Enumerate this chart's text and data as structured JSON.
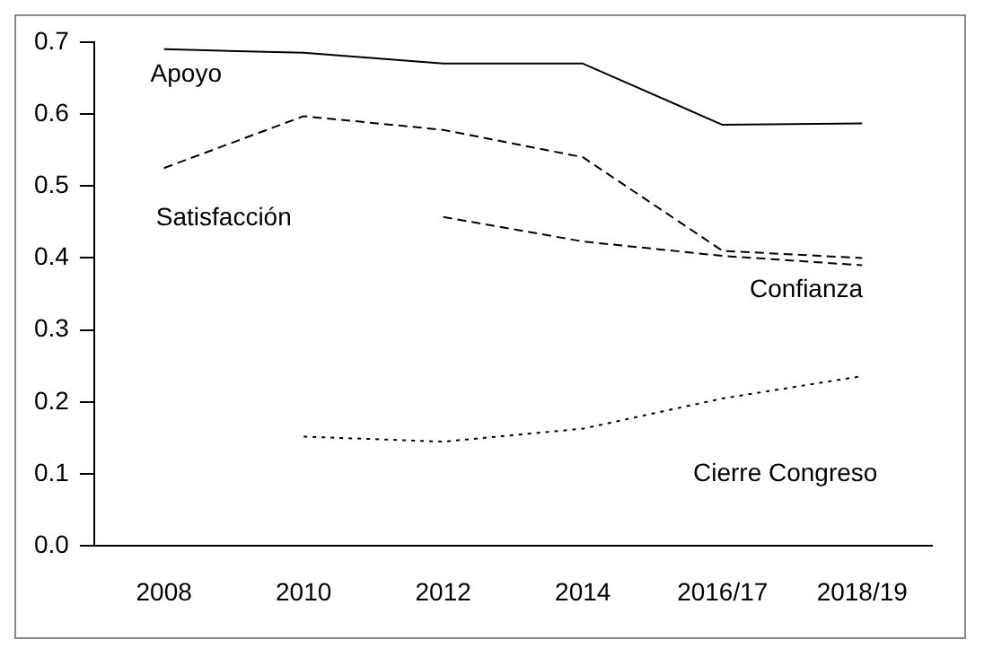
{
  "chart_data": {
    "type": "line",
    "categories": [
      "2008",
      "2010",
      "2012",
      "2014",
      "2016/17",
      "2018/19"
    ],
    "series": [
      {
        "name": "Apoyo",
        "color": "#000000",
        "line_style": "solid",
        "values": [
          0.69,
          0.685,
          0.67,
          0.67,
          0.585,
          0.587
        ]
      },
      {
        "name": "Satisfacción",
        "color": "#000000",
        "line_style": "dashed",
        "values": [
          0.525,
          0.597,
          0.578,
          0.54,
          0.41,
          0.4
        ]
      },
      {
        "name": "Confianza",
        "color": "#000000",
        "line_style": "dashed",
        "values": [
          null,
          null,
          0.457,
          0.423,
          0.403,
          0.39
        ]
      },
      {
        "name": "Cierre Congreso",
        "color": "#000000",
        "line_style": "dotted",
        "values": [
          null,
          0.152,
          0.145,
          0.163,
          0.205,
          0.236
        ]
      }
    ],
    "ylim": [
      0,
      0.7
    ],
    "yticks": [
      {
        "value": 0,
        "label": "0.0"
      },
      0.1,
      0.2,
      0.3,
      0.4,
      0.5,
      0.6,
      0.7
    ],
    "grid": false,
    "legend": false,
    "marker": "none"
  }
}
